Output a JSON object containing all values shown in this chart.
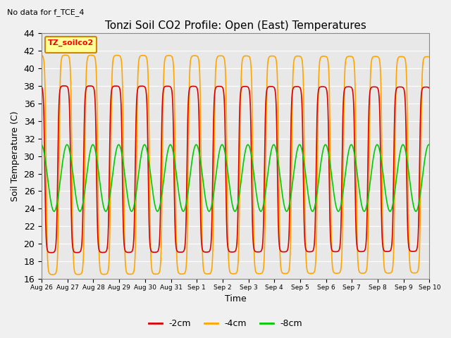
{
  "title": "Tonzi Soil CO2 Profile: Open (East) Temperatures",
  "note": "No data for f_TCE_4",
  "ylabel": "Soil Temperature (C)",
  "xlabel": "Time",
  "legend_label": "TZ_soilco2",
  "ylim": [
    16,
    44
  ],
  "series_2cm_color": "#DD0000",
  "series_4cm_color": "#FFA500",
  "series_8cm_color": "#00CC00",
  "line_width": 1.2,
  "xtick_labels": [
    "Aug 26",
    "Aug 27",
    "Aug 28",
    "Aug 29",
    "Aug 30",
    "Aug 31",
    "Sep 1",
    "Sep 2",
    "Sep 3",
    "Sep 4",
    "Sep 5",
    "Sep 6",
    "Sep 7",
    "Sep 8",
    "Sep 9",
    "Sep 10"
  ],
  "bg_color": "#E8E8E8",
  "fig_bg": "#F0F0F0",
  "grid_color": "#FFFFFF",
  "n_days": 15,
  "mean_red": 28.5,
  "mean_orange": 29.0,
  "mean_green": 27.5,
  "amp_red": 9.5,
  "amp_orange": 12.5,
  "amp_green": 3.8,
  "phase_red": 0.62,
  "phase_orange": 0.67,
  "phase_green": 0.73,
  "sharpness": 3.5
}
